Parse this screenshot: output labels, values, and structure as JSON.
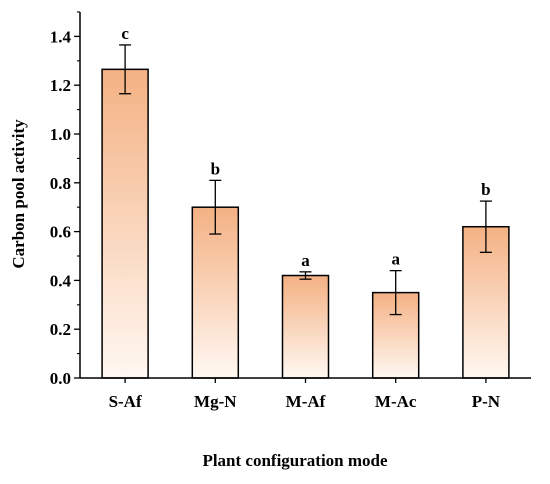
{
  "chart_data": {
    "type": "bar",
    "title": "",
    "xlabel": "Plant configuration mode",
    "ylabel": "Carbon pool activity",
    "categories": [
      "S-Af",
      "Mg-N",
      "M-Af",
      "M-Ac",
      "P-N"
    ],
    "values": [
      1.265,
      0.7,
      0.42,
      0.35,
      0.62
    ],
    "errors": [
      0.1,
      0.11,
      0.015,
      0.09,
      0.105
    ],
    "significance": [
      "c",
      "b",
      "a",
      "a",
      "b"
    ],
    "ylim": [
      0.0,
      1.5
    ],
    "yticks": [
      "0.0",
      "0.2",
      "0.4",
      "0.6",
      "0.8",
      "1.0",
      "1.2",
      "1.4"
    ],
    "grid": false,
    "colors": {
      "bar_top": "#f4b183",
      "bar_bottom": "#fff8f2",
      "bar_stroke": "#000000",
      "axis": "#000000"
    }
  }
}
